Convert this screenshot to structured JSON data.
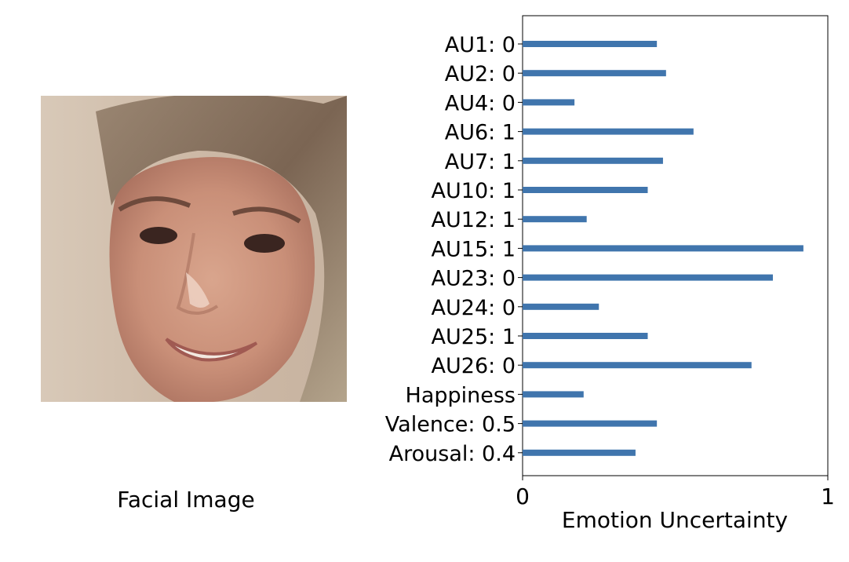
{
  "face": {
    "caption": "Facial Image"
  },
  "chart_data": {
    "type": "bar",
    "orientation": "horizontal",
    "categories": [
      "AU1: 0",
      "AU2: 0",
      "AU4: 0",
      "AU6: 1",
      "AU7: 1",
      "AU10: 1",
      "AU12: 1",
      "AU15: 1",
      "AU23: 0",
      "AU24: 0",
      "AU25: 1",
      "AU26: 0",
      "Happiness",
      "Valence: 0.5",
      "Arousal: 0.4"
    ],
    "values": [
      0.44,
      0.47,
      0.17,
      0.56,
      0.46,
      0.41,
      0.21,
      0.92,
      0.82,
      0.25,
      0.41,
      0.75,
      0.2,
      0.44,
      0.37
    ],
    "xlabel": "Emotion Uncertainty",
    "ylabel": "",
    "xlim": [
      0,
      1
    ],
    "xticks": [
      "0",
      "1"
    ],
    "bar_color": "#4075ad",
    "grid": false
  }
}
